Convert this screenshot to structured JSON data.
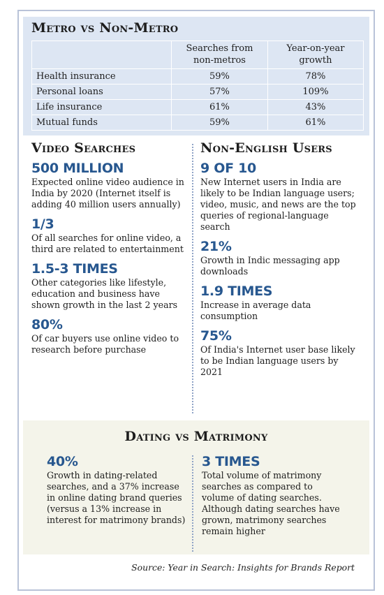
{
  "metro": {
    "title": "Metro vs Non-Metro",
    "headers": [
      "",
      "Searches from non-metros",
      "Year-on-year growth"
    ],
    "rows": [
      {
        "label": "Health insurance",
        "searches": "59%",
        "growth": "78%"
      },
      {
        "label": "Personal loans",
        "searches": "57%",
        "growth": "109%"
      },
      {
        "label": "Life insurance",
        "searches": "61%",
        "growth": "43%"
      },
      {
        "label": "Mutual funds",
        "searches": "59%",
        "growth": "61%"
      }
    ]
  },
  "video": {
    "title": "Video Searches",
    "stats": [
      {
        "value": "500 MILLION",
        "text": "Expected online video audience in India by 2020 (Internet itself is adding 40 million users annually)"
      },
      {
        "value": "1/3",
        "text": "Of all searches for online video, a third are related to entertainment"
      },
      {
        "value": "1.5-3 TIMES",
        "text": "Other categories like lifestyle, education and business have shown growth in the last 2 years"
      },
      {
        "value": "80%",
        "text": "Of car buyers use online video to research before purchase"
      }
    ]
  },
  "non_english": {
    "title": "Non-English Users",
    "stats": [
      {
        "value": "9 OF 10",
        "text": "New Internet users in India are likely to be Indian language users; video, music, and news are the top queries of regional-language search"
      },
      {
        "value": "21%",
        "text": "Growth in Indic messaging app downloads"
      },
      {
        "value": "1.9 TIMES",
        "text": "Increase in average data consumption"
      },
      {
        "value": "75%",
        "text": "Of India's Internet user base likely to be Indian language users by 2021"
      }
    ]
  },
  "dating": {
    "title": "Dating vs Matrimony",
    "left": {
      "value": "40%",
      "text": "Growth in dating-related searches, and a 37% increase in online dating brand queries (versus a 13% increase in interest for matrimony brands)"
    },
    "right": {
      "value": "3 TIMES",
      "text": "Total volume of matrimony searches as compared to volume of dating searches. Although dating searches have grown, matrimony searches remain higher"
    }
  },
  "source": "Source: Year in Search: Insights for Brands Report",
  "colors": {
    "accent": "#27578f",
    "table_bg": "#dde6f3",
    "dating_bg": "#f4f4ea",
    "border": "#b9c3d8"
  }
}
